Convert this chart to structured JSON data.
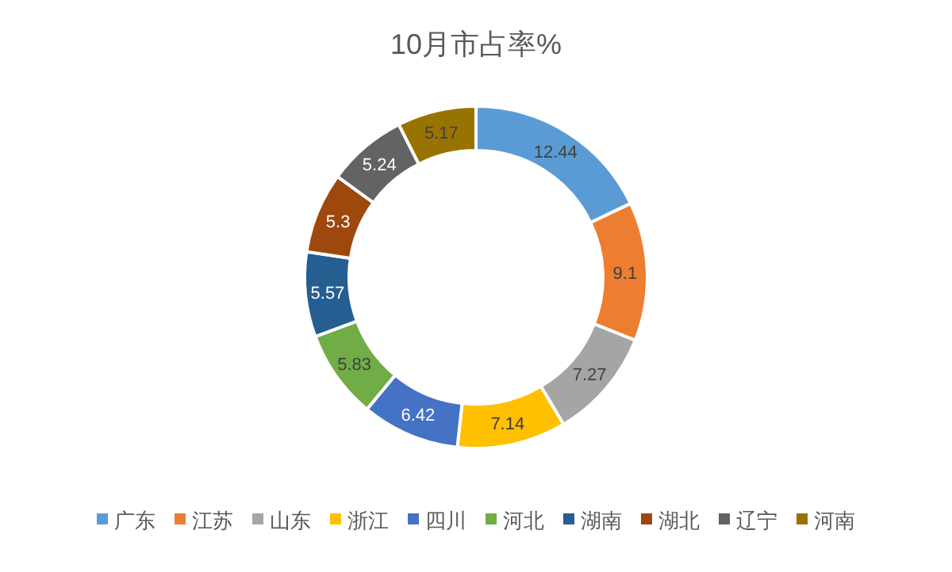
{
  "chart_data": {
    "type": "donut",
    "title": "10月市占率%",
    "categories": [
      "广东",
      "江苏",
      "山东",
      "浙江",
      "四川",
      "河北",
      "湖南",
      "湖北",
      "辽宁",
      "河南"
    ],
    "values": [
      12.44,
      9.1,
      7.27,
      7.14,
      6.42,
      5.83,
      5.57,
      5.3,
      5.24,
      5.17
    ],
    "colors": [
      "#5b9bd5",
      "#ed7d31",
      "#a5a5a5",
      "#ffc000",
      "#4472c4",
      "#70ad47",
      "#255e91",
      "#9e480e",
      "#636363",
      "#997300"
    ],
    "data_labels": true,
    "legend": "bottom"
  }
}
